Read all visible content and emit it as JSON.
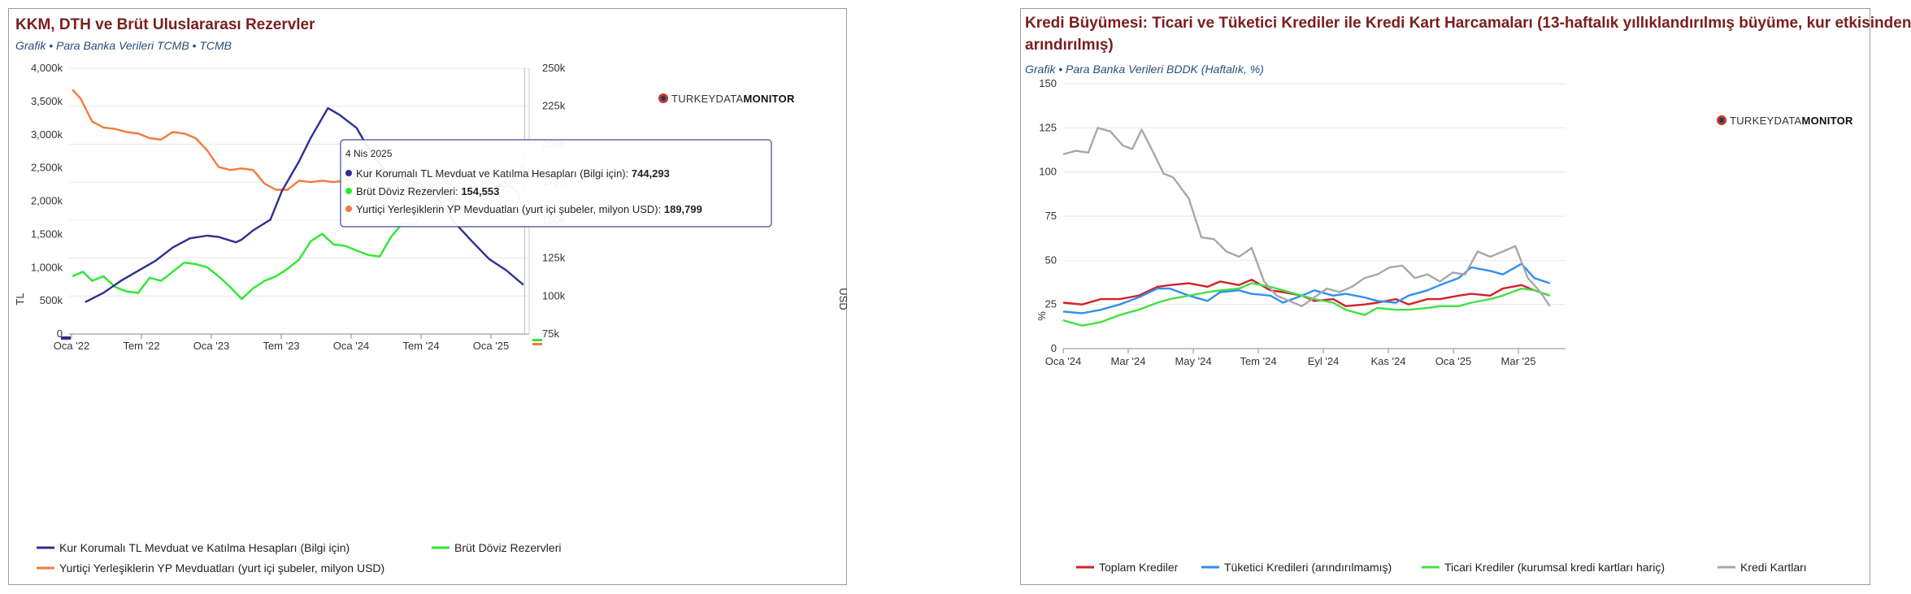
{
  "left_panel": {
    "title": "KKM, DTH ve Brüt Uluslararası Rezervler",
    "subtitle": "Grafik • Para Banka Verileri TCMB • TCMB",
    "logo_light": "TURKEYDATA",
    "logo_bold": "MONITOR"
  },
  "right_panel": {
    "title_line1": "Kredi Büyümesi: Ticari ve Tüketici Krediler ile Kredi Kart Harcamaları (13-haftalık yıllıklandırılmış büyüme, kur etkisinden",
    "title_line2": "arındırılmış)",
    "subtitle": "Grafik • Para Banka Verileri BDDK (Haftalık, %)",
    "logo_light": "TURKEYDATA",
    "logo_bold": "MONITOR"
  },
  "colors": {
    "navy": "#2e2f8f",
    "green": "#2ee82e",
    "orange": "#f47a3c",
    "red": "#d4202a",
    "blue": "#2f8ff0",
    "lgreen": "#44e044",
    "gray": "#a8a8a8"
  },
  "chart_data": [
    {
      "type": "line",
      "title": "KKM, DTH ve Brüt Uluslararası Rezervler",
      "ylabel_left": "TL",
      "ylabel_right": "USD",
      "x_ticks": [
        "Oca '22",
        "Tem '22",
        "Oca '23",
        "Tem '23",
        "Oca '24",
        "Tem '24",
        "Oca '25"
      ],
      "y_left_ticks": [
        "0",
        "500k",
        "1,000k",
        "1,500k",
        "2,000k",
        "2,500k",
        "3,000k",
        "3,500k",
        "4,000k"
      ],
      "y_left_range": [
        0,
        4000
      ],
      "y_right_ticks": [
        "75k",
        "100k",
        "125k",
        "150k",
        "175k",
        "200k",
        "225k",
        "250k"
      ],
      "y_right_range": [
        75,
        250
      ],
      "x_range": [
        0,
        40
      ],
      "series": [
        {
          "name": "Kur Korumalı TL Mevduat ve Katılma Hesapları (Bilgi için)",
          "axis": "left",
          "color": "navy",
          "x": [
            1.4,
            3,
            4.5,
            6,
            7.5,
            9,
            10.5,
            12,
            13,
            14.5,
            15,
            16,
            17.5,
            18.5,
            20,
            21,
            22.5,
            23.5,
            25,
            26,
            27.5,
            29,
            30.5,
            32,
            33.5,
            35,
            36.5,
            38,
            39.5
          ],
          "values": [
            480,
            620,
            800,
            950,
            1100,
            1300,
            1440,
            1480,
            1460,
            1380,
            1420,
            1560,
            1720,
            2150,
            2600,
            2950,
            3400,
            3300,
            3100,
            2800,
            2450,
            2340,
            2260,
            2050,
            1680,
            1400,
            1130,
            960,
            740
          ]
        },
        {
          "name": "Brüt Döviz Rezervleri",
          "axis": "right",
          "color": "green",
          "x": [
            0.3,
            1.2,
            2,
            3,
            4,
            5,
            6,
            7,
            8,
            9,
            10,
            11,
            12,
            13,
            14,
            15,
            16,
            17,
            18,
            19,
            20,
            21,
            22,
            23,
            24,
            25,
            26,
            27,
            28,
            29,
            30,
            31,
            32,
            33,
            34,
            35,
            36,
            37,
            38,
            39,
            39.6
          ],
          "values": [
            113,
            116,
            110,
            113,
            106,
            103,
            102,
            112,
            110,
            116,
            122,
            121,
            119,
            113,
            106,
            98,
            105,
            110,
            113,
            118,
            124,
            136,
            141,
            134,
            133,
            130,
            127,
            126,
            139,
            148,
            147,
            155,
            160,
            164,
            164,
            162,
            168,
            172,
            175,
            168,
            155
          ]
        },
        {
          "name": "Yurtiçi Yerleşiklerin YP Mevduatları (yurt içi şubeler, milyon USD)",
          "axis": "right",
          "color": "orange",
          "x": [
            0.3,
            1,
            2,
            3,
            4,
            5,
            6,
            7,
            8,
            9,
            10,
            11,
            12,
            13,
            14,
            15,
            16,
            17,
            18,
            19,
            20,
            21,
            22,
            23,
            24,
            25,
            26,
            27,
            28,
            29,
            30,
            31,
            32,
            33,
            34,
            35,
            36,
            37,
            38,
            39,
            39.6
          ],
          "values": [
            236,
            230,
            215,
            211,
            210,
            208,
            207,
            204,
            203,
            208,
            207,
            204,
            196,
            185,
            183,
            184,
            183,
            174,
            170,
            170,
            176,
            175,
            176,
            175,
            176,
            178,
            177,
            182,
            180,
            174,
            170,
            168,
            176,
            174,
            171,
            170,
            169,
            173,
            172,
            180,
            188
          ]
        }
      ],
      "tooltip": {
        "date": "4 Nis 2025",
        "rows": [
          {
            "label": "Kur Korumalı TL Mevduat ve Katılma Hesapları (Bilgi için):",
            "value": "744,293",
            "color": "navy"
          },
          {
            "label": "Brüt Döviz Rezervleri:",
            "value": "154,553",
            "color": "green"
          },
          {
            "label": "Yurtiçi Yerleşiklerin YP Mevduatları (yurt içi şubeler, milyon USD):",
            "value": "189,799",
            "color": "orange"
          }
        ]
      },
      "legend": [
        {
          "label": "Kur Korumalı TL Mevduat ve Katılma Hesapları (Bilgi için)",
          "color": "navy"
        },
        {
          "label": "Brüt Döviz Rezervleri",
          "color": "green"
        },
        {
          "label": "Yurtiçi Yerleşiklerin YP Mevduatları (yurt içi şubeler, milyon USD)",
          "color": "orange"
        }
      ]
    },
    {
      "type": "line",
      "title": "Kredi Büyümesi: Ticari ve Tüketici Krediler ile Kredi Kart Harcamaları",
      "ylabel": "%",
      "x_ticks": [
        "Oca '24",
        "Mar '24",
        "May '24",
        "Tem '24",
        "Eyl '24",
        "Kas '24",
        "Oca '25",
        "Mar '25"
      ],
      "y_ticks": [
        "0",
        "25",
        "50",
        "75",
        "100",
        "125",
        "150"
      ],
      "y_range": [
        0,
        150
      ],
      "x_range": [
        0,
        16
      ],
      "series": [
        {
          "name": "Toplam Krediler",
          "color": "red",
          "x": [
            0,
            0.6,
            1.2,
            1.8,
            2.4,
            3,
            3.4,
            4,
            4.6,
            5,
            5.6,
            6,
            6.6,
            7,
            7.6,
            8,
            8.6,
            9,
            9.6,
            10,
            10.6,
            11,
            11.6,
            12,
            12.6,
            13,
            13.6,
            14,
            14.6,
            15,
            15.5
          ],
          "values": [
            26,
            25,
            28,
            28,
            30,
            35,
            36,
            37,
            35,
            38,
            36,
            39,
            33,
            32,
            30,
            27,
            28,
            24,
            25,
            26,
            28,
            25,
            28,
            28,
            30,
            31,
            30,
            34,
            36,
            33,
            30
          ]
        },
        {
          "name": "Tüketici Kredileri (arındırılmamış)",
          "color": "blue",
          "x": [
            0,
            0.6,
            1.2,
            1.8,
            2.4,
            3,
            3.4,
            4,
            4.6,
            5,
            5.6,
            6,
            6.6,
            7,
            7.6,
            8,
            8.6,
            9,
            9.6,
            10,
            10.6,
            11,
            11.6,
            12,
            12.6,
            13,
            13.6,
            14,
            14.6,
            15,
            15.5
          ],
          "values": [
            21,
            20,
            22,
            25,
            29,
            34,
            34,
            30,
            27,
            32,
            33,
            31,
            30,
            26,
            30,
            33,
            30,
            31,
            29,
            27,
            26,
            30,
            33,
            36,
            40,
            46,
            44,
            42,
            48,
            40,
            37
          ]
        },
        {
          "name": "Ticari Krediler (kurumsal kredi kartları hariç)",
          "color": "lgreen",
          "x": [
            0,
            0.6,
            1.2,
            1.8,
            2.4,
            3,
            3.4,
            4,
            4.6,
            5,
            5.6,
            6,
            6.6,
            7,
            7.6,
            8,
            8.6,
            9,
            9.6,
            10,
            10.6,
            11,
            11.6,
            12,
            12.6,
            13,
            13.6,
            14,
            14.6,
            15,
            15.5
          ],
          "values": [
            16,
            13,
            15,
            19,
            22,
            26,
            28,
            30,
            32,
            33,
            34,
            37,
            35,
            33,
            30,
            28,
            26,
            22,
            19,
            23,
            22,
            22,
            23,
            24,
            24,
            26,
            28,
            30,
            34,
            33,
            30
          ]
        },
        {
          "name": "Kredi Kartları",
          "color": "gray",
          "x": [
            0,
            0.4,
            0.8,
            1.1,
            1.5,
            1.9,
            2.2,
            2.5,
            2.9,
            3.2,
            3.5,
            4,
            4.4,
            4.8,
            5.2,
            5.6,
            6,
            6.4,
            6.8,
            7.2,
            7.6,
            8,
            8.4,
            8.8,
            9.2,
            9.6,
            10,
            10.4,
            10.8,
            11.2,
            11.6,
            12,
            12.4,
            12.8,
            13.2,
            13.6,
            14,
            14.4,
            14.8,
            15.2,
            15.5
          ],
          "values": [
            110,
            112,
            111,
            125,
            123,
            115,
            113,
            124,
            110,
            99,
            97,
            85,
            63,
            62,
            55,
            52,
            57,
            38,
            30,
            27,
            24,
            29,
            34,
            32,
            35,
            40,
            42,
            46,
            47,
            40,
            42,
            38,
            43,
            42,
            55,
            52,
            55,
            58,
            40,
            32,
            24
          ]
        }
      ],
      "legend": [
        {
          "label": "Toplam Krediler",
          "color": "red"
        },
        {
          "label": "Tüketici Kredileri (arındırılmamış)",
          "color": "blue"
        },
        {
          "label": "Ticari Krediler (kurumsal kredi kartları hariç)",
          "color": "lgreen"
        },
        {
          "label": "Kredi Kartları",
          "color": "gray"
        }
      ]
    }
  ]
}
